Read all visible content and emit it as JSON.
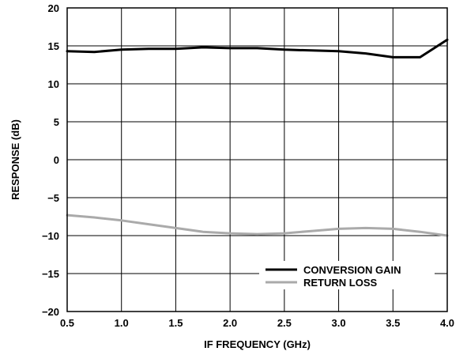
{
  "chart_data": {
    "type": "line",
    "title": "",
    "xlabel": "IF FREQUENCY (GHz)",
    "ylabel": "RESPONSE (dB)",
    "xlim": [
      0.5,
      4.0
    ],
    "ylim": [
      -20,
      20
    ],
    "x_ticks": [
      "0.5",
      "1.0",
      "1.5",
      "2.0",
      "2.5",
      "3.0",
      "3.5",
      "4.0"
    ],
    "y_ticks": [
      "20",
      "15",
      "10",
      "5",
      "0",
      "−5",
      "−10",
      "−15",
      "−20"
    ],
    "grid": true,
    "legend_position": "bottom-right",
    "series": [
      {
        "name": "CONVERSION GAIN",
        "color": "#000000",
        "x": [
          0.5,
          0.75,
          1.0,
          1.25,
          1.5,
          1.75,
          2.0,
          2.25,
          2.5,
          2.75,
          3.0,
          3.25,
          3.5,
          3.75,
          4.0
        ],
        "y": [
          14.3,
          14.2,
          14.5,
          14.6,
          14.6,
          14.8,
          14.7,
          14.7,
          14.5,
          14.4,
          14.3,
          14.0,
          13.5,
          13.5,
          15.8
        ]
      },
      {
        "name": "RETURN LOSS",
        "color": "#aaaaaa",
        "x": [
          0.5,
          0.75,
          1.0,
          1.25,
          1.5,
          1.75,
          2.0,
          2.25,
          2.5,
          2.75,
          3.0,
          3.25,
          3.5,
          3.75,
          4.0
        ],
        "y": [
          -7.3,
          -7.6,
          -8.0,
          -8.5,
          -9.0,
          -9.5,
          -9.7,
          -9.8,
          -9.7,
          -9.4,
          -9.1,
          -9.0,
          -9.1,
          -9.5,
          -10.0
        ]
      }
    ]
  }
}
